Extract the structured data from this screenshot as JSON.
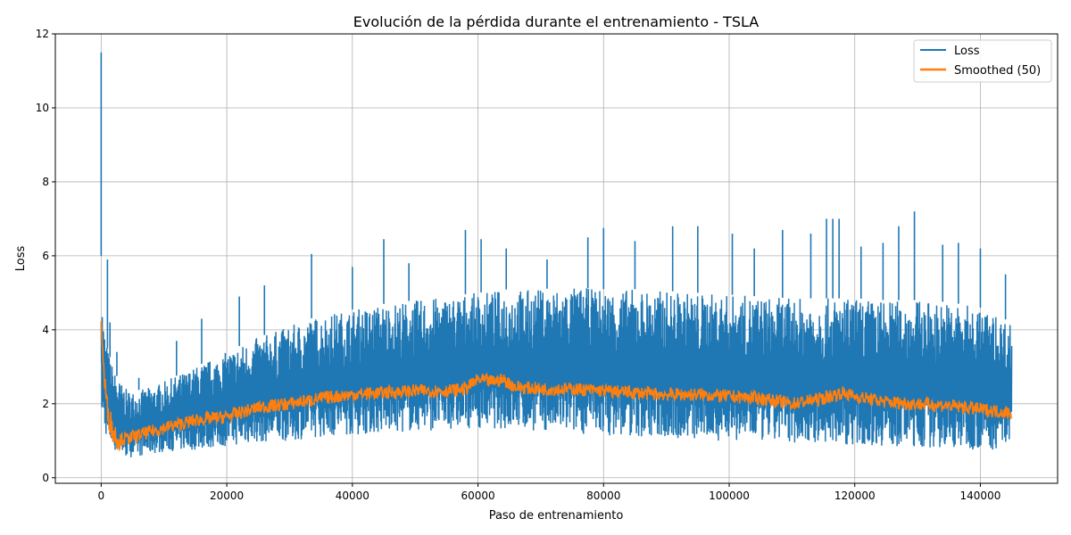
{
  "chart_data": {
    "type": "line",
    "title": "Evolución de la pérdida durante el entrenamiento - TSLA",
    "xlabel": "Paso de entrenamiento",
    "ylabel": "Loss",
    "xlim": [
      -7300,
      152300
    ],
    "ylim": [
      -0.15,
      12.0
    ],
    "xticks": [
      0,
      20000,
      40000,
      60000,
      80000,
      100000,
      120000,
      140000
    ],
    "yticks": [
      0,
      2,
      4,
      6,
      8,
      10,
      12
    ],
    "grid": true,
    "legend_position": "top-right",
    "x_max": 145000,
    "series": [
      {
        "name": "Loss",
        "color": "#1f77b4",
        "envelope_x": [
          0,
          200,
          500,
          1000,
          2000,
          3000,
          4000,
          5000,
          7000,
          10000,
          15000,
          20000,
          25000,
          30000,
          35000,
          40000,
          45000,
          50000,
          55000,
          60000,
          65000,
          70000,
          75000,
          80000,
          85000,
          90000,
          95000,
          100000,
          105000,
          110000,
          115000,
          120000,
          125000,
          130000,
          135000,
          140000,
          145000
        ],
        "envelope_low": [
          2.0,
          1.5,
          1.3,
          1.0,
          0.75,
          0.6,
          0.55,
          0.55,
          0.6,
          0.7,
          0.75,
          0.85,
          0.95,
          1.0,
          1.1,
          1.15,
          1.2,
          1.25,
          1.3,
          1.35,
          1.3,
          1.25,
          1.2,
          1.15,
          1.1,
          1.05,
          1.0,
          1.0,
          0.95,
          0.95,
          0.9,
          0.9,
          0.85,
          0.8,
          0.8,
          0.75,
          0.75
        ],
        "envelope_high": [
          6.0,
          4.6,
          4.0,
          3.5,
          2.9,
          2.6,
          2.4,
          2.35,
          2.4,
          2.6,
          3.0,
          3.4,
          3.8,
          4.1,
          4.4,
          4.55,
          4.7,
          4.8,
          4.9,
          5.0,
          5.1,
          5.1,
          5.15,
          5.1,
          5.1,
          5.05,
          5.0,
          4.95,
          4.9,
          4.85,
          4.85,
          4.85,
          4.8,
          4.8,
          4.75,
          4.6,
          4.2
        ],
        "spikes": [
          [
            0,
            11.5
          ],
          [
            1000,
            5.9
          ],
          [
            1400,
            4.2
          ],
          [
            2500,
            3.4
          ],
          [
            6000,
            2.7
          ],
          [
            12000,
            3.7
          ],
          [
            16000,
            4.3
          ],
          [
            22000,
            4.9
          ],
          [
            26000,
            5.2
          ],
          [
            33500,
            6.05
          ],
          [
            40000,
            5.7
          ],
          [
            45000,
            6.45
          ],
          [
            49000,
            5.8
          ],
          [
            58000,
            6.7
          ],
          [
            60500,
            6.45
          ],
          [
            64500,
            6.2
          ],
          [
            71000,
            5.9
          ],
          [
            77500,
            6.5
          ],
          [
            80000,
            6.75
          ],
          [
            85000,
            6.4
          ],
          [
            91000,
            6.8
          ],
          [
            95000,
            6.8
          ],
          [
            100500,
            6.6
          ],
          [
            104000,
            6.2
          ],
          [
            108500,
            6.7
          ],
          [
            113000,
            6.6
          ],
          [
            115500,
            7.0
          ],
          [
            116500,
            7.0
          ],
          [
            117500,
            7.0
          ],
          [
            121000,
            6.25
          ],
          [
            124500,
            6.35
          ],
          [
            127000,
            6.8
          ],
          [
            129500,
            7.2
          ],
          [
            134000,
            6.3
          ],
          [
            136500,
            6.35
          ],
          [
            140000,
            6.2
          ],
          [
            144000,
            5.5
          ]
        ]
      },
      {
        "name": "Smoothed (50)",
        "color": "#ff7f0e",
        "x": [
          0,
          200,
          500,
          1000,
          2000,
          3000,
          4000,
          5000,
          7000,
          10000,
          15000,
          20000,
          25000,
          30000,
          35000,
          40000,
          45000,
          50000,
          55000,
          58000,
          60000,
          62000,
          64000,
          66000,
          70000,
          75000,
          80000,
          85000,
          90000,
          95000,
          100000,
          105000,
          110000,
          115000,
          118000,
          120000,
          125000,
          130000,
          135000,
          140000,
          145000
        ],
        "y": [
          4.5,
          3.5,
          2.7,
          1.8,
          1.2,
          1.05,
          1.05,
          1.1,
          1.2,
          1.35,
          1.55,
          1.65,
          1.9,
          2.0,
          2.15,
          2.25,
          2.3,
          2.35,
          2.35,
          2.4,
          2.65,
          2.6,
          2.65,
          2.45,
          2.4,
          2.4,
          2.35,
          2.3,
          2.25,
          2.25,
          2.2,
          2.15,
          2.0,
          2.15,
          2.3,
          2.2,
          2.05,
          2.0,
          1.95,
          1.85,
          1.75
        ]
      }
    ]
  }
}
